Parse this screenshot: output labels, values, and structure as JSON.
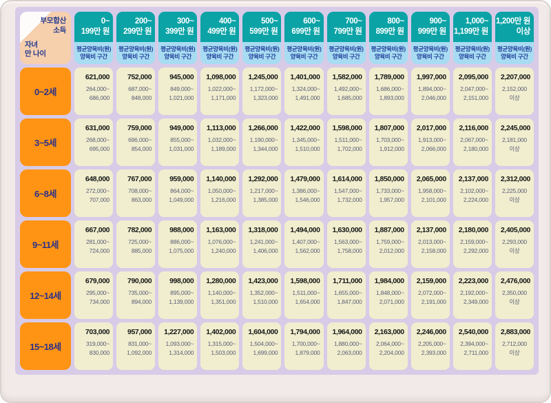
{
  "colors": {
    "frame_background": "#f2eae8",
    "table_background": "#d7cbe8",
    "header_teal": "#0ba3a6",
    "subheader_blue": "#a8dcf2",
    "subheader_text_navy": "#1f3d99",
    "age_label_orange": "#ff9414",
    "age_label_text": "#2c3188",
    "corner_peach": "#f6cfad",
    "cell_cream": "#f0eecf",
    "average_text": "#161616",
    "range_text": "#5c5c74"
  },
  "chart_data": {
    "type": "table",
    "corner": {
      "top_label_line1": "부모합산",
      "top_label_line2": "소득",
      "side_label_line1": "자녀",
      "side_label_line2": "만 나이"
    },
    "column_subheader": {
      "line1": "평균양육비(원)",
      "line2": "양육비 구간"
    },
    "columns": [
      {
        "line1": "0~",
        "line2": "199만 원"
      },
      {
        "line1": "200~",
        "line2": "299만 원"
      },
      {
        "line1": "300~",
        "line2": "399만 원"
      },
      {
        "line1": "400~",
        "line2": "499만 원"
      },
      {
        "line1": "500~",
        "line2": "599만 원"
      },
      {
        "line1": "600~",
        "line2": "699만 원"
      },
      {
        "line1": "700~",
        "line2": "799만 원"
      },
      {
        "line1": "800~",
        "line2": "899만 원"
      },
      {
        "line1": "900~",
        "line2": "999만 원"
      },
      {
        "line1": "1,000~",
        "line2": "1,199만 원"
      },
      {
        "line1": "1,200만 원",
        "line2": "이상"
      }
    ],
    "rows": [
      {
        "age": "0~2세",
        "cells": [
          {
            "avg": "621,000",
            "range1": "264,000~",
            "range2": "686,000"
          },
          {
            "avg": "752,000",
            "range1": "687,000~",
            "range2": "848,000"
          },
          {
            "avg": "945,000",
            "range1": "849,000~",
            "range2": "1,021,000"
          },
          {
            "avg": "1,098,000",
            "range1": "1,022,000~",
            "range2": "1,171,000"
          },
          {
            "avg": "1,245,000",
            "range1": "1,172,000~",
            "range2": "1,323,000"
          },
          {
            "avg": "1,401,000",
            "range1": "1,324,000~",
            "range2": "1,491,000"
          },
          {
            "avg": "1,582,000",
            "range1": "1,492,000~",
            "range2": "1,685,000"
          },
          {
            "avg": "1,789,000",
            "range1": "1,686,000~",
            "range2": "1,893,000"
          },
          {
            "avg": "1,997,000",
            "range1": "1,894,000~",
            "range2": "2,046,000"
          },
          {
            "avg": "2,095,000",
            "range1": "2,047,000~",
            "range2": "2,151,000"
          },
          {
            "avg": "2,207,000",
            "range1": "2,152,000",
            "range2": "이상"
          }
        ]
      },
      {
        "age": "3~5세",
        "cells": [
          {
            "avg": "631,000",
            "range1": "268,000~",
            "range2": "695,000"
          },
          {
            "avg": "759,000",
            "range1": "696,000~",
            "range2": "854,000"
          },
          {
            "avg": "949,000",
            "range1": "855,000~",
            "range2": "1,031,000"
          },
          {
            "avg": "1,113,000",
            "range1": "1,032,000~",
            "range2": "1,189,000"
          },
          {
            "avg": "1,266,000",
            "range1": "1,190,000~",
            "range2": "1,344,000"
          },
          {
            "avg": "1,422,000",
            "range1": "1,345,000~",
            "range2": "1,510,000"
          },
          {
            "avg": "1,598,000",
            "range1": "1,511,000~",
            "range2": "1,702,000"
          },
          {
            "avg": "1,807,000",
            "range1": "1,703,000~",
            "range2": "1,912,000"
          },
          {
            "avg": "2,017,000",
            "range1": "1,913,000~",
            "range2": "2,066,000"
          },
          {
            "avg": "2,116,000",
            "range1": "2,067,000~",
            "range2": "2,180,000"
          },
          {
            "avg": "2,245,000",
            "range1": "2,181,000",
            "range2": "이상"
          }
        ]
      },
      {
        "age": "6~8세",
        "cells": [
          {
            "avg": "648,000",
            "range1": "272,000~",
            "range2": "707,000"
          },
          {
            "avg": "767,000",
            "range1": "708,000~",
            "range2": "863,000"
          },
          {
            "avg": "959,000",
            "range1": "864,000~",
            "range2": "1,049,000"
          },
          {
            "avg": "1,140,000",
            "range1": "1,050,000~",
            "range2": "1,216,000"
          },
          {
            "avg": "1,292,000",
            "range1": "1,217,000~",
            "range2": "1,385,000"
          },
          {
            "avg": "1,479,000",
            "range1": "1,386,000~",
            "range2": "1,546,000"
          },
          {
            "avg": "1,614,000",
            "range1": "1,547,000~",
            "range2": "1,732,000"
          },
          {
            "avg": "1,850,000",
            "range1": "1,733,000~",
            "range2": "1,957,000"
          },
          {
            "avg": "2,065,000",
            "range1": "1,958,000~",
            "range2": "2,101,000"
          },
          {
            "avg": "2,137,000",
            "range1": "2,102,000~",
            "range2": "2,224,000"
          },
          {
            "avg": "2,312,000",
            "range1": "2,225,000",
            "range2": "이상"
          }
        ]
      },
      {
        "age": "9~11세",
        "cells": [
          {
            "avg": "667,000",
            "range1": "281,000~",
            "range2": "724,000"
          },
          {
            "avg": "782,000",
            "range1": "725,000~",
            "range2": "885,000"
          },
          {
            "avg": "988,000",
            "range1": "886,000~",
            "range2": "1,075,000"
          },
          {
            "avg": "1,163,000",
            "range1": "1,076,000~",
            "range2": "1,240,000"
          },
          {
            "avg": "1,318,000",
            "range1": "1,241,000~",
            "range2": "1,406,000"
          },
          {
            "avg": "1,494,000",
            "range1": "1,407,000~",
            "range2": "1,562,000"
          },
          {
            "avg": "1,630,000",
            "range1": "1,563,000~",
            "range2": "1,758,000"
          },
          {
            "avg": "1,887,000",
            "range1": "1,759,000~",
            "range2": "2,012,000"
          },
          {
            "avg": "2,137,000",
            "range1": "2,013,000~",
            "range2": "2,158,000"
          },
          {
            "avg": "2,180,000",
            "range1": "2,159,000~",
            "range2": "2,292,000"
          },
          {
            "avg": "2,405,000",
            "range1": "2,293,000",
            "range2": "이상"
          }
        ]
      },
      {
        "age": "12~14세",
        "cells": [
          {
            "avg": "679,000",
            "range1": "295,000~",
            "range2": "734,000"
          },
          {
            "avg": "790,000",
            "range1": "735,000~",
            "range2": "894,000"
          },
          {
            "avg": "998,000",
            "range1": "895,000~",
            "range2": "1,139,000"
          },
          {
            "avg": "1,280,000",
            "range1": "1,140,000~",
            "range2": "1,351,000"
          },
          {
            "avg": "1,423,000",
            "range1": "1,352,000~",
            "range2": "1,510,000"
          },
          {
            "avg": "1,598,000",
            "range1": "1,511,000~",
            "range2": "1,654,000"
          },
          {
            "avg": "1,711,000",
            "range1": "1,655,000~",
            "range2": "1,847,000"
          },
          {
            "avg": "1,984,000",
            "range1": "1,848,000~",
            "range2": "2,071,000"
          },
          {
            "avg": "2,159,000",
            "range1": "2,072,000~",
            "range2": "2,191,000"
          },
          {
            "avg": "2,223,000",
            "range1": "2,192,000~",
            "range2": "2,349,000"
          },
          {
            "avg": "2,476,000",
            "range1": "2,350,000",
            "range2": "이상"
          }
        ]
      },
      {
        "age": "15~18세",
        "cells": [
          {
            "avg": "703,000",
            "range1": "319,000~",
            "range2": "830,000"
          },
          {
            "avg": "957,000",
            "range1": "831,000~",
            "range2": "1,092,000"
          },
          {
            "avg": "1,227,000",
            "range1": "1,093,000~",
            "range2": "1,314,000"
          },
          {
            "avg": "1,402,000",
            "range1": "1,315,000~",
            "range2": "1,503,000"
          },
          {
            "avg": "1,604,000",
            "range1": "1,504,000~",
            "range2": "1,699,000"
          },
          {
            "avg": "1,794,000",
            "range1": "1,700,000~",
            "range2": "1,879,000"
          },
          {
            "avg": "1,964,000",
            "range1": "1,880,000~",
            "range2": "2,063,000"
          },
          {
            "avg": "2,163,000",
            "range1": "2,064,000~",
            "range2": "2,204,000"
          },
          {
            "avg": "2,246,000",
            "range1": "2,205,000~",
            "range2": "2,393,000"
          },
          {
            "avg": "2,540,000",
            "range1": "2,394,000~",
            "range2": "2,711,000"
          },
          {
            "avg": "2,883,000",
            "range1": "2,712,000",
            "range2": "이상"
          }
        ]
      }
    ]
  }
}
